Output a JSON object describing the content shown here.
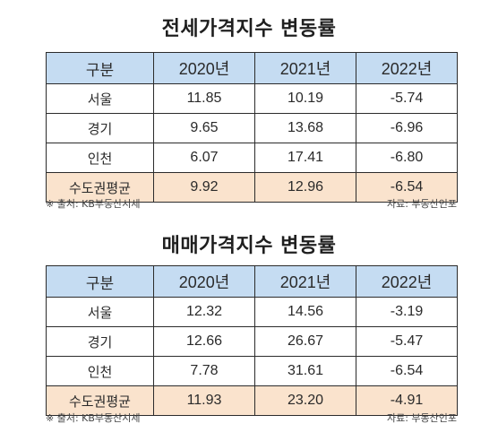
{
  "tables": [
    {
      "title": "전세가격지수 변동률",
      "headers": [
        "구분",
        "2020년",
        "2021년",
        "2022년"
      ],
      "rows": [
        {
          "label": "서울",
          "values": [
            "11.85",
            "10.19",
            "-5.74"
          ]
        },
        {
          "label": "경기",
          "values": [
            "9.65",
            "13.68",
            "-6.96"
          ]
        },
        {
          "label": "인천",
          "values": [
            "6.07",
            "17.41",
            "-6.80"
          ]
        },
        {
          "label": "수도권평균",
          "values": [
            "9.92",
            "12.96",
            "-6.54"
          ]
        }
      ],
      "note": "※ 출처: KB부동산시세",
      "credit": "자료: 부동산인포"
    },
    {
      "title": "매매가격지수 변동률",
      "headers": [
        "구분",
        "2020년",
        "2021년",
        "2022년"
      ],
      "rows": [
        {
          "label": "서울",
          "values": [
            "12.32",
            "14.56",
            "-3.19"
          ]
        },
        {
          "label": "경기",
          "values": [
            "12.66",
            "26.67",
            "-5.47"
          ]
        },
        {
          "label": "인천",
          "values": [
            "7.78",
            "31.61",
            "-6.54"
          ]
        },
        {
          "label": "수도권평균",
          "values": [
            "11.93",
            "23.20",
            "-4.91"
          ]
        }
      ],
      "note": "※ 출처: KB부동산시세",
      "credit": "자료: 부동산인포"
    }
  ],
  "colors": {
    "header_bg": "#c5dcf2",
    "average_row_bg": "#fae3cd",
    "border": "#2b2b2b"
  }
}
